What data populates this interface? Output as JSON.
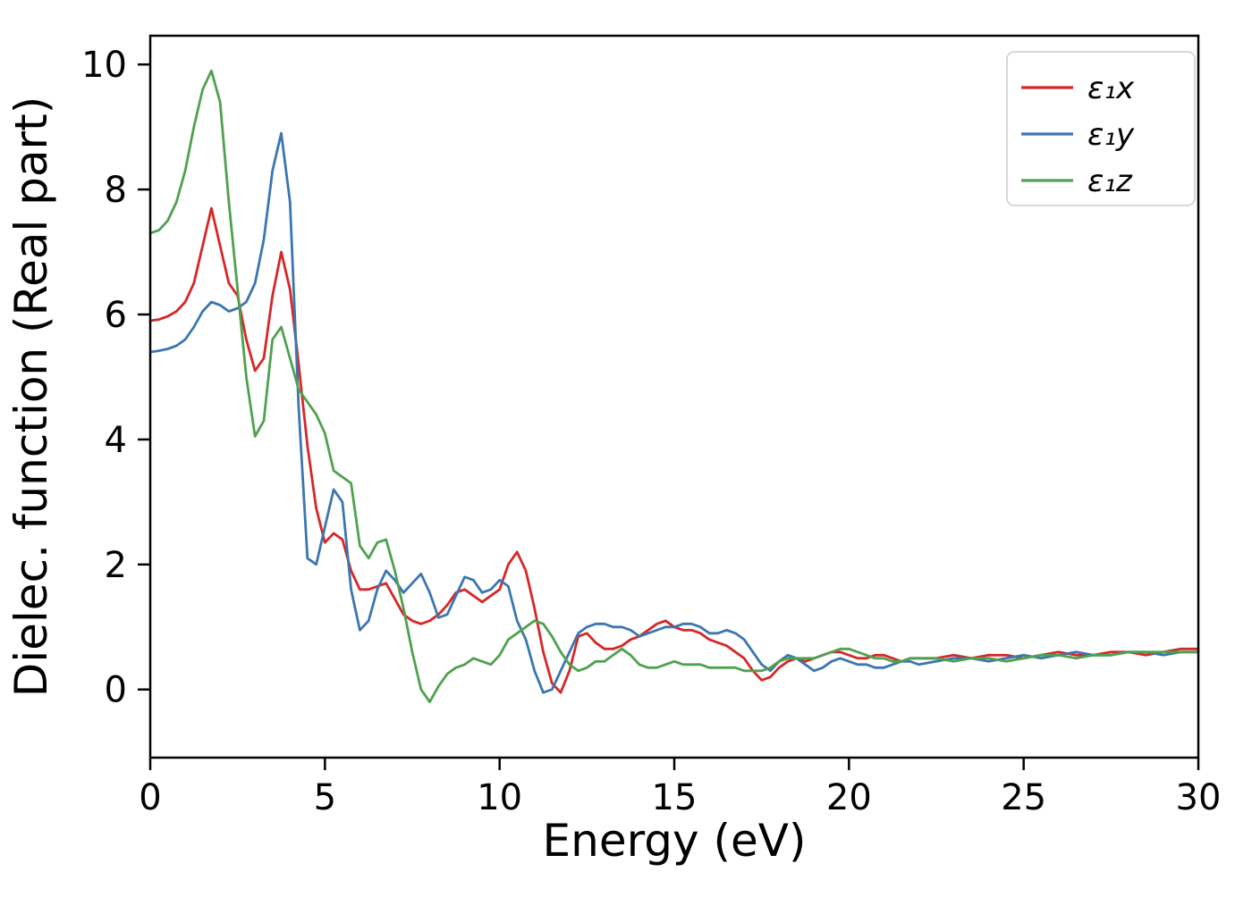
{
  "figure": {
    "background": "#ffffff"
  },
  "chart_data": {
    "type": "line",
    "title": "",
    "xlabel": "Energy (eV)",
    "ylabel": "Dielec. function (Real part)",
    "xlim": [
      0,
      30
    ],
    "ylim": [
      -1.09,
      10.46
    ],
    "xticks": [
      0,
      5,
      10,
      15,
      20,
      25,
      30
    ],
    "yticks": [
      0,
      2,
      4,
      6,
      8,
      10
    ],
    "grid": false,
    "legend_position": "upper right",
    "x": [
      0,
      0.25,
      0.5,
      0.75,
      1,
      1.25,
      1.5,
      1.75,
      2,
      2.25,
      2.5,
      2.75,
      3,
      3.25,
      3.5,
      3.75,
      4,
      4.25,
      4.5,
      4.75,
      5,
      5.25,
      5.5,
      5.75,
      6,
      6.25,
      6.5,
      6.75,
      7,
      7.25,
      7.5,
      7.75,
      8,
      8.25,
      8.5,
      8.75,
      9,
      9.25,
      9.5,
      9.75,
      10,
      10.25,
      10.5,
      10.75,
      11,
      11.25,
      11.5,
      11.75,
      12,
      12.25,
      12.5,
      12.75,
      13,
      13.25,
      13.5,
      13.75,
      14,
      14.25,
      14.5,
      14.75,
      15,
      15.25,
      15.5,
      15.75,
      16,
      16.25,
      16.5,
      16.75,
      17,
      17.25,
      17.5,
      17.75,
      18,
      18.25,
      18.5,
      18.75,
      19,
      19.25,
      19.5,
      19.75,
      20,
      20.25,
      20.5,
      20.75,
      21,
      21.25,
      21.5,
      21.75,
      22,
      22.5,
      23,
      23.5,
      24,
      24.5,
      25,
      25.5,
      26,
      26.5,
      27,
      27.5,
      28,
      28.5,
      29,
      29.5,
      30
    ],
    "series": [
      {
        "name": "ε₁x",
        "color": "#d62728",
        "values": [
          5.9,
          5.92,
          5.97,
          6.05,
          6.2,
          6.5,
          7.1,
          7.7,
          7.1,
          6.5,
          6.3,
          5.6,
          5.1,
          5.3,
          6.3,
          7.0,
          6.4,
          5.2,
          3.9,
          2.9,
          2.35,
          2.5,
          2.4,
          1.9,
          1.6,
          1.6,
          1.65,
          1.7,
          1.45,
          1.2,
          1.1,
          1.05,
          1.1,
          1.2,
          1.35,
          1.55,
          1.6,
          1.5,
          1.4,
          1.5,
          1.6,
          2.0,
          2.2,
          1.9,
          1.3,
          0.6,
          0.1,
          -0.05,
          0.3,
          0.85,
          0.9,
          0.75,
          0.65,
          0.65,
          0.7,
          0.8,
          0.85,
          0.95,
          1.05,
          1.1,
          1.0,
          0.95,
          0.95,
          0.9,
          0.8,
          0.75,
          0.7,
          0.6,
          0.5,
          0.3,
          0.15,
          0.2,
          0.35,
          0.45,
          0.5,
          0.45,
          0.5,
          0.55,
          0.6,
          0.6,
          0.55,
          0.5,
          0.5,
          0.55,
          0.55,
          0.5,
          0.45,
          0.5,
          0.5,
          0.5,
          0.55,
          0.5,
          0.55,
          0.55,
          0.5,
          0.55,
          0.6,
          0.55,
          0.55,
          0.6,
          0.6,
          0.55,
          0.6,
          0.65,
          0.65
        ]
      },
      {
        "name": "ε₁y",
        "color": "#3b76b0",
        "values": [
          5.4,
          5.42,
          5.45,
          5.5,
          5.6,
          5.8,
          6.05,
          6.2,
          6.15,
          6.05,
          6.1,
          6.2,
          6.5,
          7.2,
          8.3,
          8.9,
          7.8,
          4.5,
          2.1,
          2.0,
          2.6,
          3.2,
          3.0,
          1.6,
          0.95,
          1.1,
          1.6,
          1.9,
          1.75,
          1.55,
          1.7,
          1.85,
          1.55,
          1.15,
          1.2,
          1.5,
          1.8,
          1.75,
          1.55,
          1.6,
          1.75,
          1.65,
          1.1,
          0.8,
          0.3,
          -0.05,
          0.0,
          0.3,
          0.6,
          0.9,
          1.0,
          1.05,
          1.05,
          1.0,
          1.0,
          0.95,
          0.85,
          0.9,
          0.95,
          1.0,
          1.0,
          1.05,
          1.05,
          1.0,
          0.9,
          0.9,
          0.95,
          0.9,
          0.8,
          0.6,
          0.4,
          0.3,
          0.45,
          0.55,
          0.5,
          0.4,
          0.3,
          0.35,
          0.45,
          0.5,
          0.45,
          0.4,
          0.4,
          0.35,
          0.35,
          0.4,
          0.45,
          0.45,
          0.4,
          0.45,
          0.5,
          0.5,
          0.45,
          0.5,
          0.55,
          0.5,
          0.55,
          0.6,
          0.55,
          0.55,
          0.6,
          0.6,
          0.55,
          0.6,
          0.6
        ]
      },
      {
        "name": "ε₁z",
        "color": "#4fa14f",
        "values": [
          7.3,
          7.35,
          7.5,
          7.8,
          8.3,
          9.0,
          9.6,
          9.9,
          9.4,
          7.8,
          6.4,
          5.0,
          4.05,
          4.3,
          5.6,
          5.8,
          5.3,
          4.8,
          4.6,
          4.4,
          4.1,
          3.5,
          3.4,
          3.3,
          2.3,
          2.1,
          2.35,
          2.4,
          1.9,
          1.3,
          0.6,
          0.0,
          -0.2,
          0.05,
          0.25,
          0.35,
          0.4,
          0.5,
          0.45,
          0.4,
          0.55,
          0.8,
          0.9,
          1.0,
          1.1,
          1.05,
          0.85,
          0.6,
          0.4,
          0.3,
          0.35,
          0.45,
          0.45,
          0.55,
          0.65,
          0.55,
          0.4,
          0.35,
          0.35,
          0.4,
          0.45,
          0.4,
          0.4,
          0.4,
          0.35,
          0.35,
          0.35,
          0.35,
          0.3,
          0.3,
          0.3,
          0.35,
          0.45,
          0.5,
          0.5,
          0.5,
          0.5,
          0.55,
          0.6,
          0.65,
          0.65,
          0.6,
          0.55,
          0.5,
          0.5,
          0.45,
          0.45,
          0.5,
          0.5,
          0.5,
          0.45,
          0.5,
          0.5,
          0.45,
          0.5,
          0.55,
          0.55,
          0.5,
          0.55,
          0.55,
          0.6,
          0.6,
          0.6,
          0.6,
          0.6
        ]
      }
    ]
  }
}
